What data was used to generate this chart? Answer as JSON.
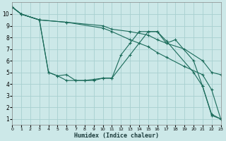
{
  "xlabel": "Humidex (Indice chaleur)",
  "bg_color": "#cce8e8",
  "grid_color": "#a8d0d0",
  "line_color": "#1a6b5a",
  "xlim": [
    0,
    23
  ],
  "ylim": [
    0.5,
    11
  ],
  "xticks": [
    0,
    1,
    2,
    3,
    4,
    5,
    6,
    7,
    8,
    9,
    10,
    11,
    12,
    13,
    14,
    15,
    16,
    17,
    18,
    19,
    20,
    21,
    22,
    23
  ],
  "yticks": [
    1,
    2,
    3,
    4,
    5,
    6,
    7,
    8,
    9,
    10
  ],
  "lines": [
    {
      "x": [
        0,
        1,
        3,
        6,
        10,
        11,
        13,
        15,
        16,
        17,
        19,
        21,
        22,
        23
      ],
      "y": [
        10.6,
        10.0,
        9.5,
        9.3,
        9.0,
        8.7,
        8.5,
        8.2,
        7.8,
        7.5,
        7.0,
        6.0,
        5.0,
        4.8
      ]
    },
    {
      "x": [
        0,
        1,
        3,
        6,
        10,
        11,
        13,
        15,
        16,
        17,
        19,
        21,
        22,
        23
      ],
      "y": [
        10.6,
        10.0,
        9.5,
        9.3,
        8.8,
        8.5,
        7.8,
        7.2,
        6.7,
        6.3,
        5.5,
        4.8,
        3.5,
        1.0
      ]
    },
    {
      "x": [
        0,
        1,
        3,
        4,
        5,
        6,
        7,
        8,
        9,
        10,
        11,
        13,
        14,
        15,
        16,
        17,
        20,
        21,
        22,
        23
      ],
      "y": [
        10.6,
        10.0,
        9.5,
        5.0,
        4.7,
        4.3,
        4.3,
        4.3,
        4.4,
        4.5,
        4.5,
        6.5,
        7.5,
        8.5,
        8.5,
        7.7,
        5.0,
        3.8,
        1.4,
        1.0
      ]
    },
    {
      "x": [
        0,
        1,
        3,
        4,
        5,
        6,
        7,
        8,
        9,
        10,
        11,
        12,
        13,
        14,
        15,
        16,
        17,
        18,
        20,
        21,
        22,
        23
      ],
      "y": [
        10.6,
        10.0,
        9.5,
        5.0,
        4.7,
        4.8,
        4.3,
        4.3,
        4.3,
        4.5,
        4.5,
        6.5,
        7.5,
        8.5,
        8.5,
        8.5,
        7.5,
        7.8,
        6.0,
        3.8,
        1.3,
        1.0
      ]
    }
  ]
}
